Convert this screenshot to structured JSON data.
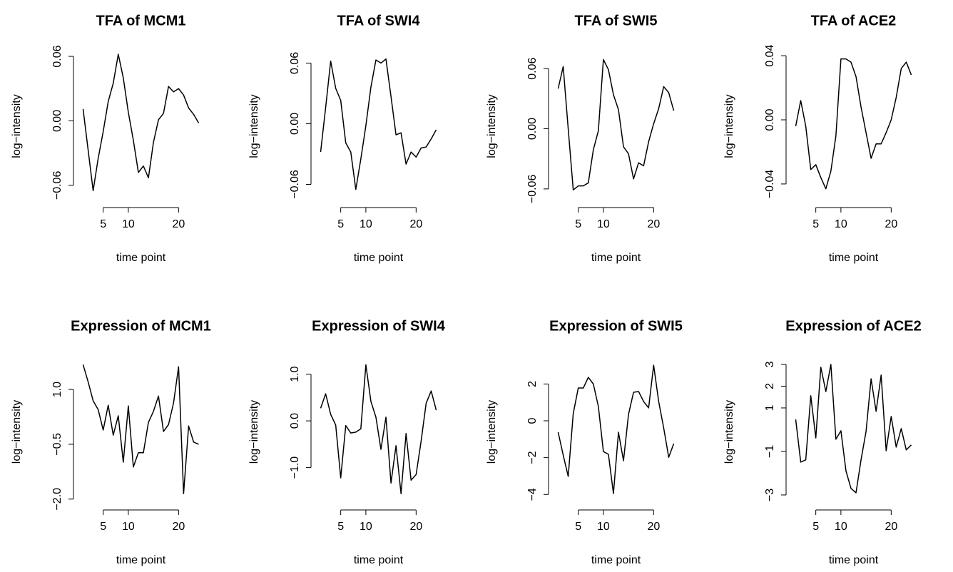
{
  "chart_data": [
    {
      "type": "line",
      "title": "TFA of MCM1",
      "xlabel": "time point",
      "ylabel": "log−intensity",
      "color": "#000000",
      "x": [
        1,
        2,
        3,
        4,
        5,
        6,
        7,
        8,
        9,
        10,
        11,
        12,
        13,
        14,
        15,
        16,
        17,
        18,
        19,
        20,
        21,
        22,
        23,
        24
      ],
      "values": [
        0.011,
        -0.027,
        -0.065,
        -0.035,
        -0.01,
        0.018,
        0.035,
        0.062,
        0.04,
        0.008,
        -0.018,
        -0.048,
        -0.042,
        -0.053,
        -0.02,
        0.001,
        0.007,
        0.032,
        0.027,
        0.03,
        0.024,
        0.012,
        0.006,
        -0.002
      ],
      "xlim": [
        0.08,
        24.92
      ],
      "ylim": [
        -0.076,
        0.066
      ],
      "xticks": [
        5,
        10,
        20
      ],
      "yticks": [
        {
          "value": -0.06,
          "label": "−0.06"
        },
        {
          "value": 0,
          "label": "0.00"
        },
        0.06
      ]
    },
    {
      "type": "line",
      "title": "TFA of SWI4",
      "xlabel": "time point",
      "ylabel": "log−intensity",
      "color": "#000000",
      "x": [
        1,
        2,
        3,
        4,
        5,
        6,
        7,
        8,
        9,
        10,
        11,
        12,
        13,
        14,
        15,
        16,
        17,
        18,
        19,
        20,
        21,
        22,
        23,
        24
      ],
      "values": [
        -0.028,
        0.016,
        0.062,
        0.035,
        0.023,
        -0.019,
        -0.028,
        -0.065,
        -0.035,
        -0.002,
        0.036,
        0.063,
        0.06,
        0.064,
        0.027,
        -0.011,
        -0.009,
        -0.04,
        -0.028,
        -0.033,
        -0.024,
        -0.023,
        -0.015,
        -0.006
      ],
      "xlim": [
        0.08,
        24.92
      ],
      "ylim": [
        -0.078,
        0.073
      ],
      "xticks": [
        5,
        10,
        20
      ],
      "yticks": [
        {
          "value": -0.06,
          "label": "−0.06"
        },
        {
          "value": 0,
          "label": "0.00"
        },
        0.06
      ]
    },
    {
      "type": "line",
      "title": "TFA of SWI5",
      "xlabel": "time point",
      "ylabel": "log−intensity",
      "color": "#000000",
      "x": [
        1,
        2,
        3,
        4,
        5,
        6,
        7,
        8,
        9,
        10,
        11,
        12,
        13,
        14,
        15,
        16,
        17,
        18,
        19,
        20,
        21,
        22,
        23,
        24
      ],
      "values": [
        0.04,
        0.062,
        0.0,
        -0.061,
        -0.057,
        -0.057,
        -0.054,
        -0.021,
        -0.002,
        0.069,
        0.059,
        0.034,
        0.019,
        -0.018,
        -0.025,
        -0.05,
        -0.034,
        -0.037,
        -0.013,
        0.005,
        0.02,
        0.042,
        0.036,
        0.018
      ],
      "xlim": [
        0.08,
        24.92
      ],
      "ylim": [
        -0.0736,
        0.0786
      ],
      "xticks": [
        5,
        10,
        20
      ],
      "yticks": [
        {
          "value": -0.06,
          "label": "−0.06"
        },
        {
          "value": 0,
          "label": "0.00"
        },
        0.06
      ]
    },
    {
      "type": "line",
      "title": "TFA of ACE2",
      "xlabel": "time point",
      "ylabel": "log−intensity",
      "color": "#000000",
      "x": [
        1,
        2,
        3,
        4,
        5,
        6,
        7,
        8,
        9,
        10,
        11,
        12,
        13,
        14,
        15,
        16,
        17,
        18,
        19,
        20,
        21,
        22,
        23,
        24
      ],
      "values": [
        -0.004,
        0.012,
        -0.004,
        -0.031,
        -0.028,
        -0.036,
        -0.043,
        -0.032,
        -0.01,
        0.038,
        0.038,
        0.036,
        0.027,
        0.008,
        -0.008,
        -0.024,
        -0.015,
        -0.015,
        -0.008,
        0.0,
        0.014,
        0.032,
        0.036,
        0.028
      ],
      "xlim": [
        0.08,
        24.92
      ],
      "ylim": [
        -0.0516,
        0.0436
      ],
      "xticks": [
        5,
        10,
        20
      ],
      "yticks": [
        {
          "value": -0.04,
          "label": "−0.04"
        },
        {
          "value": 0,
          "label": "0.00"
        },
        0.04
      ]
    },
    {
      "type": "line",
      "title": "Expression of MCM1",
      "xlabel": "time point",
      "ylabel": "log−intensity",
      "color": "#000000",
      "x": [
        1,
        2,
        3,
        4,
        5,
        6,
        7,
        8,
        9,
        10,
        11,
        12,
        13,
        14,
        15,
        16,
        17,
        18,
        19,
        20,
        21,
        22,
        23,
        24
      ],
      "values": [
        1.68,
        1.21,
        0.69,
        0.45,
        -0.11,
        0.57,
        -0.25,
        0.28,
        -0.99,
        0.55,
        -1.12,
        -0.73,
        -0.73,
        0.1,
        0.4,
        0.82,
        -0.15,
        0.04,
        0.63,
        1.62,
        -1.85,
        0.0,
        -0.44,
        -0.5
      ],
      "xlim": [
        0.08,
        24.92
      ],
      "ylim": [
        -2.16,
        1.84
      ],
      "xticks": [
        5,
        10,
        20
      ],
      "yticks": [
        {
          "value": -2,
          "label": "−2.0"
        },
        {
          "value": -0.5,
          "label": "−0.5"
        },
        {
          "value": 1,
          "label": "1.0"
        }
      ]
    },
    {
      "type": "line",
      "title": "Expression of SWI4",
      "xlabel": "time point",
      "ylabel": "log−intensity",
      "color": "#000000",
      "x": [
        1,
        2,
        3,
        4,
        5,
        6,
        7,
        8,
        9,
        10,
        11,
        12,
        13,
        14,
        15,
        16,
        17,
        18,
        19,
        20,
        21,
        22,
        23,
        24
      ],
      "values": [
        0.27,
        0.58,
        0.14,
        -0.09,
        -1.22,
        -0.1,
        -0.26,
        -0.24,
        -0.17,
        1.2,
        0.42,
        0.08,
        -0.61,
        0.08,
        -1.33,
        -0.53,
        -1.56,
        -0.27,
        -1.27,
        -1.15,
        -0.43,
        0.38,
        0.64,
        0.23
      ],
      "xlim": [
        0.08,
        24.92
      ],
      "ylim": [
        -1.8,
        1.33
      ],
      "xticks": [
        5,
        10,
        20
      ],
      "yticks": [
        {
          "value": -1,
          "label": "−1.0"
        },
        {
          "value": 0,
          "label": "0.0"
        },
        {
          "value": 1,
          "label": "1.0"
        }
      ]
    },
    {
      "type": "line",
      "title": "Expression of SWI5",
      "xlabel": "time point",
      "ylabel": "log−intensity",
      "color": "#000000",
      "x": [
        1,
        2,
        3,
        4,
        5,
        6,
        7,
        8,
        9,
        10,
        11,
        12,
        13,
        14,
        15,
        16,
        17,
        18,
        19,
        20,
        21,
        22,
        23,
        24
      ],
      "values": [
        -0.62,
        -1.86,
        -3.02,
        0.39,
        1.78,
        1.78,
        2.36,
        2.0,
        0.78,
        -1.67,
        -1.82,
        -3.95,
        -0.62,
        -2.17,
        0.35,
        1.55,
        1.59,
        1.05,
        0.7,
        3.02,
        1.05,
        -0.39,
        -1.98,
        -1.24
      ],
      "xlim": [
        0.08,
        24.92
      ],
      "ylim": [
        -4.57,
        3.37
      ],
      "xticks": [
        5,
        10,
        20
      ],
      "yticks": [
        {
          "value": -4,
          "label": "−4"
        },
        {
          "value": -2,
          "label": "−2"
        },
        0,
        2
      ]
    },
    {
      "type": "line",
      "title": "Expression of ACE2",
      "xlabel": "time point",
      "ylabel": "log−intensity",
      "color": "#000000",
      "x": [
        1,
        2,
        3,
        4,
        5,
        6,
        7,
        8,
        9,
        10,
        11,
        12,
        13,
        14,
        15,
        16,
        17,
        18,
        19,
        20,
        21,
        22,
        23,
        24
      ],
      "values": [
        0.47,
        -1.49,
        -1.39,
        1.56,
        -0.38,
        2.87,
        1.75,
        3.0,
        -0.44,
        -0.05,
        -1.89,
        -2.7,
        -2.9,
        -1.39,
        -0.08,
        2.34,
        0.84,
        2.51,
        -0.97,
        0.61,
        -0.8,
        0.05,
        -0.93,
        -0.7
      ],
      "xlim": [
        0.08,
        24.92
      ],
      "ylim": [
        -3.46,
        3.26
      ],
      "xticks": [
        5,
        10,
        20
      ],
      "yticks": [
        {
          "value": -3,
          "label": "−3"
        },
        {
          "value": -1,
          "label": "−1"
        },
        1,
        2,
        3
      ]
    }
  ]
}
